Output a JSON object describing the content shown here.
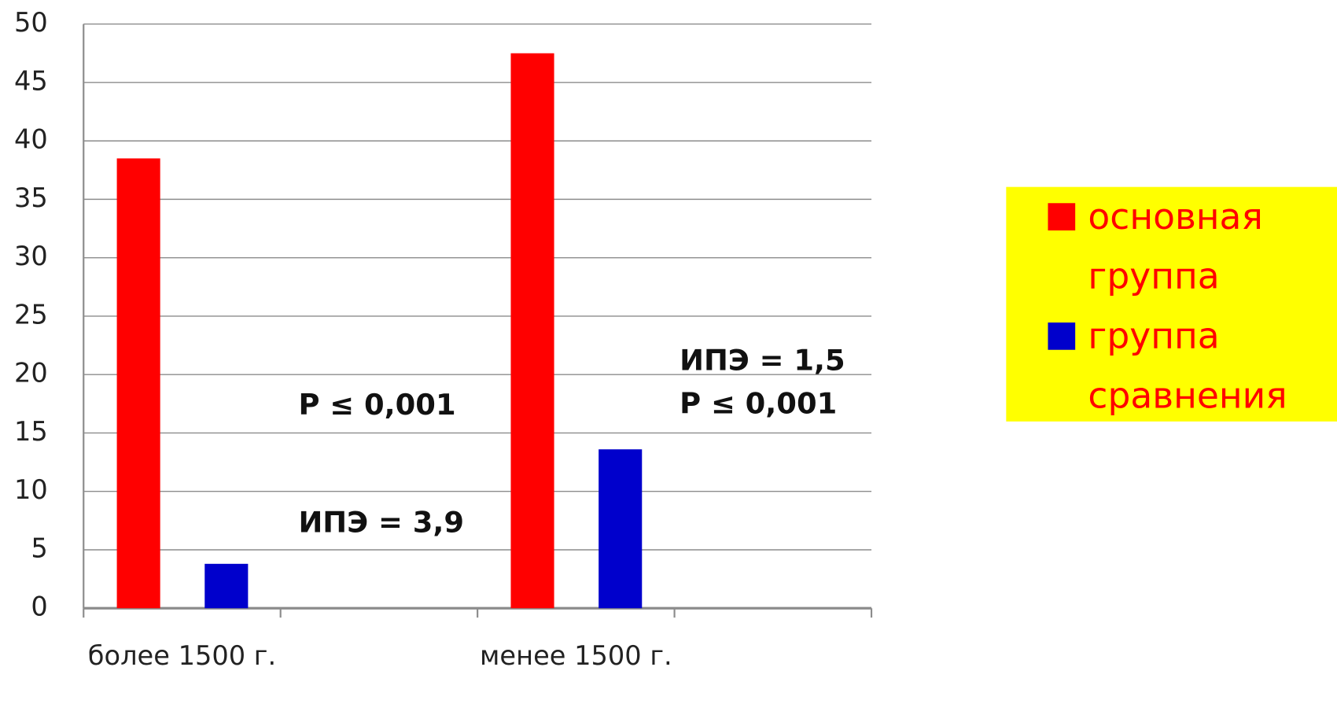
{
  "chart_data": {
    "type": "bar",
    "categories": [
      "более 1500 г.",
      null,
      "менее 1500 г.",
      null
    ],
    "series": [
      {
        "name": "основная группа",
        "color": "#ff0000",
        "values": [
          38.5,
          null,
          47.5,
          null
        ]
      },
      {
        "name": "группа сравнения",
        "color": "#0000cc",
        "values": [
          3.8,
          null,
          13.6,
          null
        ]
      }
    ],
    "ylim": [
      0,
      50
    ],
    "yticks": [
      0,
      5,
      10,
      15,
      20,
      25,
      30,
      35,
      40,
      45,
      50
    ],
    "grid": true,
    "legend": "right",
    "legend_background": "#ffff00",
    "annotations": [
      "P ≤ 0,001",
      "ИПЭ = 3,9",
      "ИПЭ = 1,5",
      "P ≤ 0,001"
    ]
  }
}
